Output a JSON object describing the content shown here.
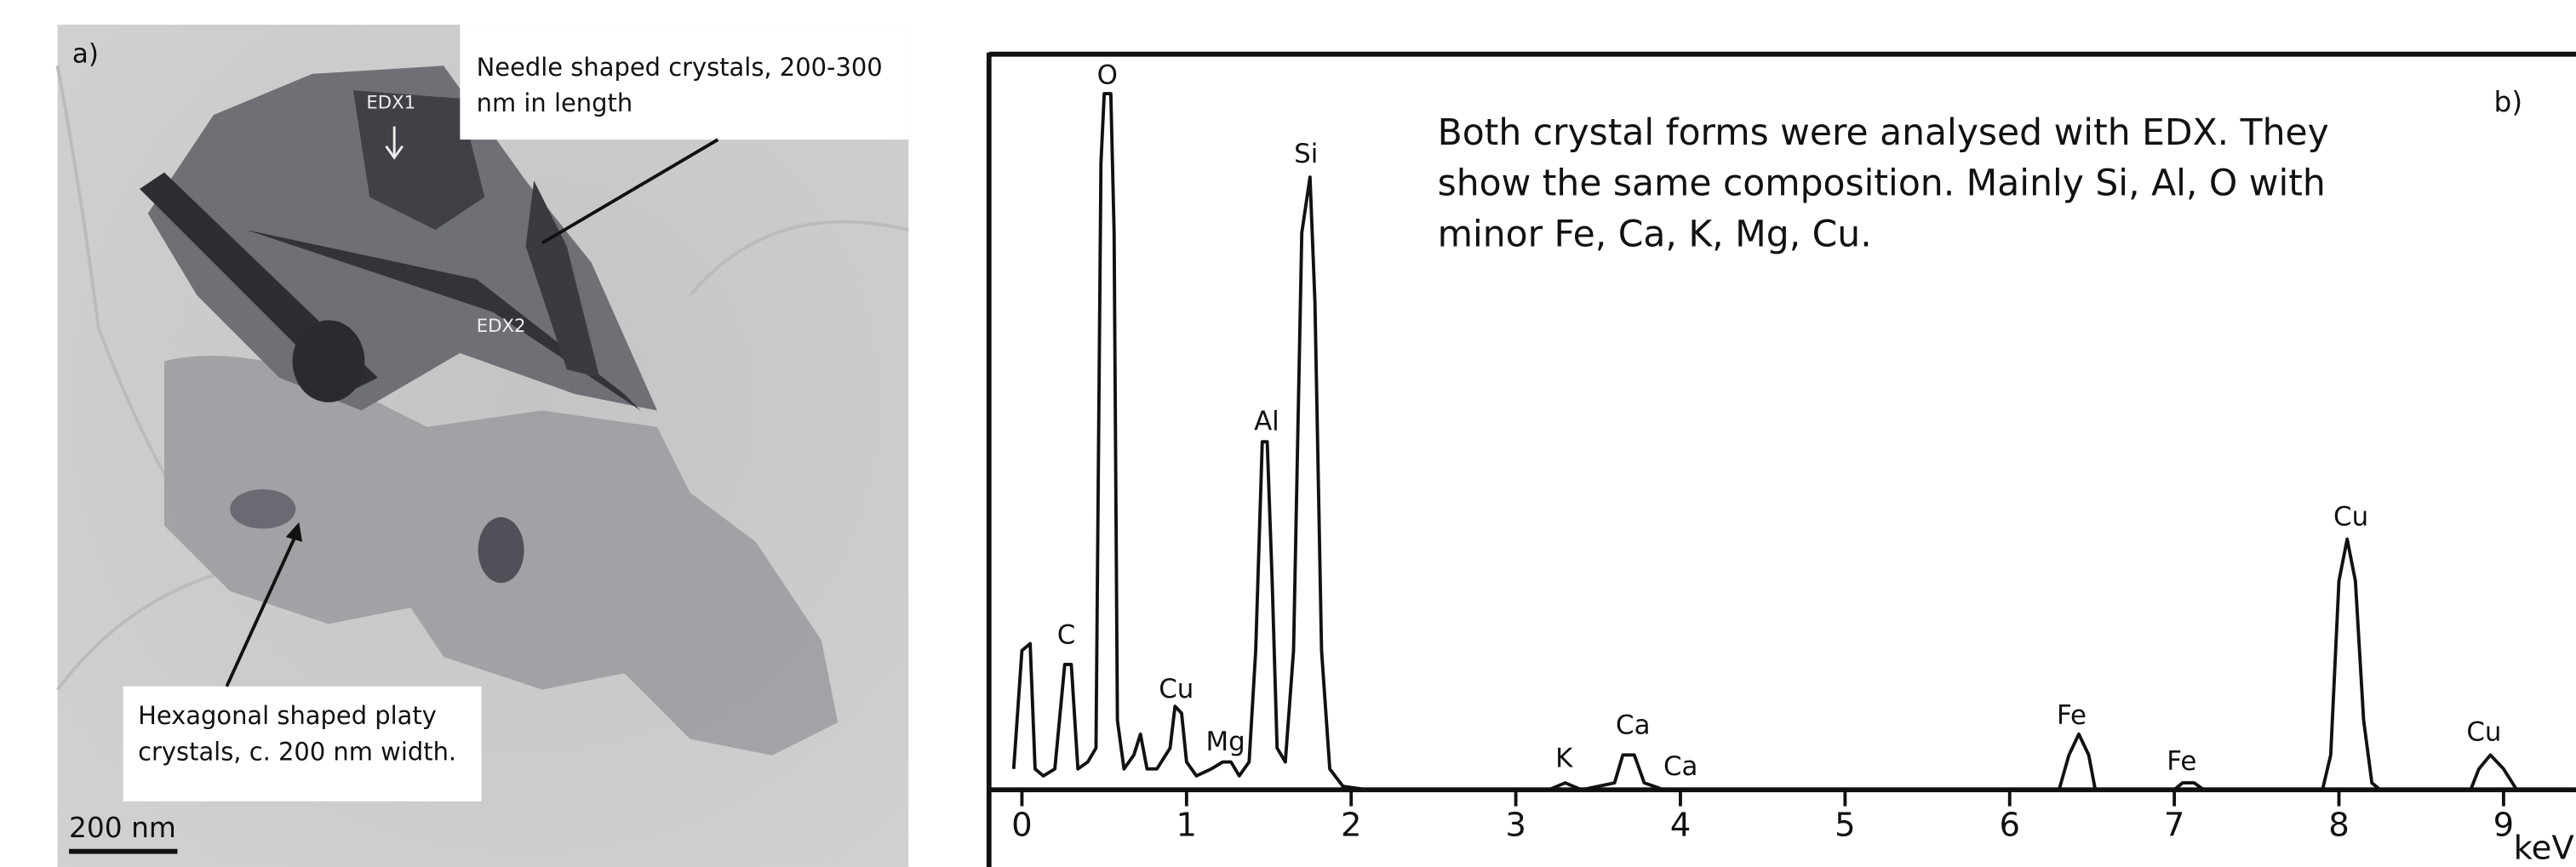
{
  "panel_a": {
    "label": "a)",
    "callout_needle": [
      "Needle shaped crystals, 200-300",
      "nm in length"
    ],
    "callout_platy": [
      "Hexagonal shaped platy",
      "crystals, c. 200 nm width."
    ],
    "image_labels": [
      "EDX1",
      "EDX2"
    ],
    "scale_bar": "200 nm"
  },
  "chart_data": {
    "type": "line",
    "panel_label": "b)",
    "annotation": [
      "Both crystal forms were analysed with EDX. They",
      "show the same composition. Mainly Si, Al, O with",
      "minor Fe, Ca, K, Mg, Cu."
    ],
    "peak_labels": [
      "O",
      "Si",
      "Al",
      "C",
      "Cu",
      "Mg",
      "K",
      "Ca",
      "Ca",
      "Fe",
      "Fe",
      "Cu",
      "Cu"
    ],
    "x_label": "keV",
    "xlim": [
      -0.2,
      9.44
    ],
    "ylim": [
      0,
      100
    ],
    "xticks": [
      0,
      1,
      2,
      3,
      4,
      5,
      6,
      7,
      8,
      9
    ],
    "color": "#111111",
    "x": [
      -0.05,
      0.0,
      0.05,
      0.08,
      0.13,
      0.2,
      0.26,
      0.3,
      0.34,
      0.4,
      0.45,
      0.48,
      0.5,
      0.54,
      0.56,
      0.58,
      0.62,
      0.68,
      0.72,
      0.76,
      0.82,
      0.9,
      0.93,
      0.97,
      1.0,
      1.06,
      1.15,
      1.22,
      1.27,
      1.32,
      1.38,
      1.42,
      1.46,
      1.49,
      1.52,
      1.55,
      1.6,
      1.65,
      1.7,
      1.75,
      1.78,
      1.82,
      1.87,
      1.95,
      2.1,
      3.2,
      3.3,
      3.4,
      3.6,
      3.65,
      3.72,
      3.78,
      3.9,
      6.3,
      6.36,
      6.42,
      6.48,
      6.52,
      7.0,
      7.05,
      7.12,
      7.18,
      7.9,
      7.95,
      8.0,
      8.05,
      8.1,
      8.15,
      8.2,
      8.25,
      8.8,
      8.85,
      8.92,
      9.0,
      9.08,
      9.4
    ],
    "values": [
      3,
      20,
      21,
      3,
      2,
      3,
      18,
      18,
      3,
      4,
      6,
      90,
      100,
      100,
      80,
      10,
      3,
      5,
      8,
      3,
      3,
      6,
      12,
      11,
      4,
      2,
      3,
      4,
      4,
      2,
      4,
      20,
      50,
      50,
      30,
      6,
      4,
      20,
      80,
      88,
      70,
      20,
      3,
      0.5,
      0,
      0,
      1,
      0,
      1,
      5,
      5,
      1,
      0,
      0,
      5,
      8,
      5,
      0,
      0,
      1,
      1,
      0,
      0,
      5,
      30,
      36,
      30,
      10,
      1,
      0,
      0,
      3,
      5,
      3,
      0,
      0
    ]
  }
}
